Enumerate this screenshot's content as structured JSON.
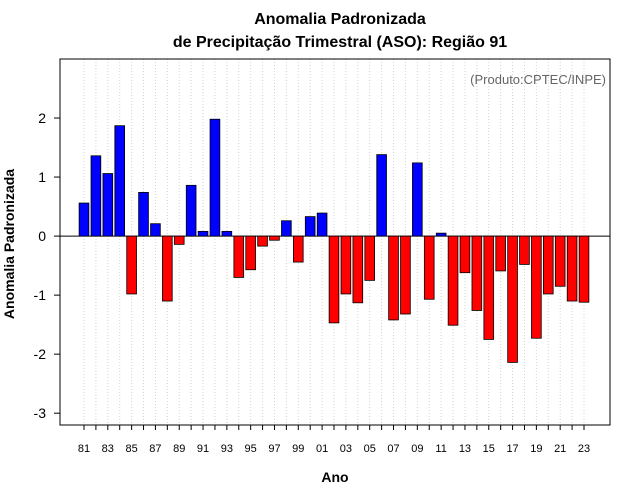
{
  "chart_data": {
    "type": "bar",
    "title": "Anomalia Padronizada",
    "subtitle": "de Precipitação Trimestral (ASO): Região 91",
    "annotation": "(Produto:CPTEC/INPE)",
    "xlabel": "Ano",
    "ylabel": "Anomalia Padronizada",
    "ylim": [
      -3.2,
      3.0
    ],
    "yticks": [
      "-3",
      "-2",
      "-1",
      "0",
      "1",
      "2"
    ],
    "categories": [
      "81",
      "82",
      "83",
      "84",
      "85",
      "86",
      "87",
      "88",
      "89",
      "90",
      "91",
      "92",
      "93",
      "94",
      "95",
      "96",
      "97",
      "98",
      "99",
      "00",
      "01",
      "02",
      "03",
      "04",
      "05",
      "06",
      "07",
      "08",
      "09",
      "10",
      "11",
      "12",
      "13",
      "14",
      "15",
      "16",
      "17",
      "18",
      "19",
      "20",
      "21",
      "22",
      "23"
    ],
    "xtick_labels": [
      "81",
      "83",
      "85",
      "87",
      "89",
      "91",
      "93",
      "95",
      "97",
      "99",
      "01",
      "03",
      "05",
      "07",
      "09",
      "11",
      "13",
      "15",
      "17",
      "19",
      "21",
      "23"
    ],
    "values": [
      0.56,
      1.36,
      1.06,
      1.87,
      -0.98,
      0.74,
      0.21,
      -1.1,
      -0.14,
      0.86,
      0.08,
      1.98,
      0.08,
      -0.7,
      -0.57,
      -0.17,
      -0.07,
      0.26,
      -0.44,
      0.33,
      0.39,
      -1.47,
      -0.98,
      -1.13,
      -0.75,
      1.38,
      -1.42,
      -1.32,
      1.24,
      -1.07,
      0.05,
      -1.51,
      -0.62,
      -1.26,
      -1.75,
      -0.59,
      -2.14,
      -0.48,
      -1.73,
      -0.98,
      -0.85,
      -1.1,
      -1.12
    ],
    "colors": {
      "positive": "#0000ff",
      "negative": "#ff0000",
      "grid": "#d3d3d3",
      "text": "#000000",
      "note": "#666666"
    }
  }
}
